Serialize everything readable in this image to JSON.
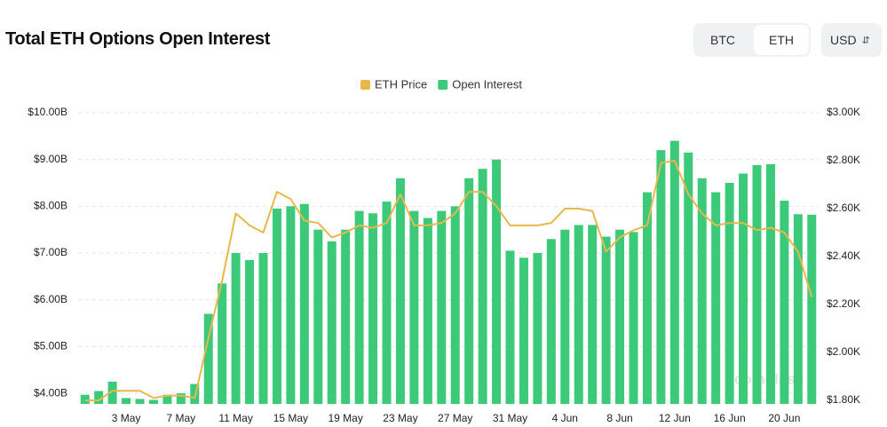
{
  "header": {
    "title": "Total ETH Options Open Interest",
    "tabs": [
      "BTC",
      "ETH"
    ],
    "currency": "USD"
  },
  "chart_data": {
    "type": "bar_line",
    "categories": [
      null,
      null,
      null,
      "3 May",
      null,
      null,
      null,
      "7 May",
      null,
      null,
      null,
      "11 May",
      null,
      null,
      null,
      "15 May",
      null,
      null,
      null,
      "19 May",
      null,
      null,
      null,
      "23 May",
      null,
      null,
      null,
      "27 May",
      null,
      null,
      null,
      "31 May",
      null,
      null,
      null,
      "4 Jun",
      null,
      null,
      null,
      "8 Jun",
      null,
      null,
      null,
      "12 Jun",
      null,
      null,
      null,
      "16 Jun",
      null,
      null,
      null,
      "20 Jun",
      null,
      null
    ],
    "series": [
      {
        "name": "ETH Price",
        "type": "line",
        "axis": "y2",
        "color": "#e6b94a",
        "values": [
          1.8,
          1.8,
          1.84,
          1.84,
          1.84,
          1.81,
          1.82,
          1.82,
          1.81,
          2.06,
          2.3,
          2.58,
          2.53,
          2.5,
          2.67,
          2.64,
          2.55,
          2.54,
          2.48,
          2.5,
          2.53,
          2.52,
          2.54,
          2.66,
          2.53,
          2.53,
          2.54,
          2.58,
          2.67,
          2.67,
          2.61,
          2.53,
          2.53,
          2.53,
          2.54,
          2.6,
          2.6,
          2.59,
          2.42,
          2.48,
          2.51,
          2.53,
          2.79,
          2.8,
          2.66,
          2.58,
          2.53,
          2.54,
          2.54,
          2.51,
          2.52,
          2.5,
          2.42,
          2.23
        ]
      },
      {
        "name": "Open Interest",
        "type": "bar",
        "color": "#3cc97a",
        "values": [
          3.97,
          4.05,
          4.25,
          3.9,
          3.88,
          3.86,
          3.97,
          4.0,
          4.2,
          5.7,
          6.35,
          7.0,
          6.85,
          7.0,
          7.95,
          8.0,
          8.05,
          7.5,
          7.25,
          7.5,
          7.9,
          7.85,
          8.1,
          8.6,
          7.9,
          7.75,
          7.9,
          8.0,
          8.6,
          8.8,
          9.0,
          7.05,
          6.9,
          7.0,
          7.3,
          7.5,
          7.6,
          7.6,
          7.35,
          7.5,
          7.45,
          8.3,
          9.2,
          9.4,
          9.15,
          8.6,
          8.3,
          8.5,
          8.7,
          8.88,
          8.9,
          8.12,
          7.83,
          7.82
        ]
      }
    ],
    "ylim": [
      3.85,
      10.0
    ],
    "yticks": [
      {
        "value": 4,
        "label": "$4.00B"
      },
      {
        "value": 5,
        "label": "$5.00B"
      },
      {
        "value": 6,
        "label": "$6.00B"
      },
      {
        "value": 7,
        "label": "$7.00B"
      },
      {
        "value": 8,
        "label": "$8.00B"
      },
      {
        "value": 9,
        "label": "$9.00B"
      },
      {
        "value": 10,
        "label": "$10.00B"
      }
    ],
    "y2lim": [
      1.8,
      3.0
    ],
    "y2ticks": [
      {
        "value": 1.8,
        "label": "$1.80K"
      },
      {
        "value": 2.0,
        "label": "$2.00K"
      },
      {
        "value": 2.2,
        "label": "$2.20K"
      },
      {
        "value": 2.4,
        "label": "$2.40K"
      },
      {
        "value": 2.6,
        "label": "$2.60K"
      },
      {
        "value": 2.8,
        "label": "$2.80K"
      },
      {
        "value": 3.0,
        "label": "$3.00K"
      }
    ],
    "grid": true,
    "legend": "top",
    "watermark": "coinglass"
  }
}
